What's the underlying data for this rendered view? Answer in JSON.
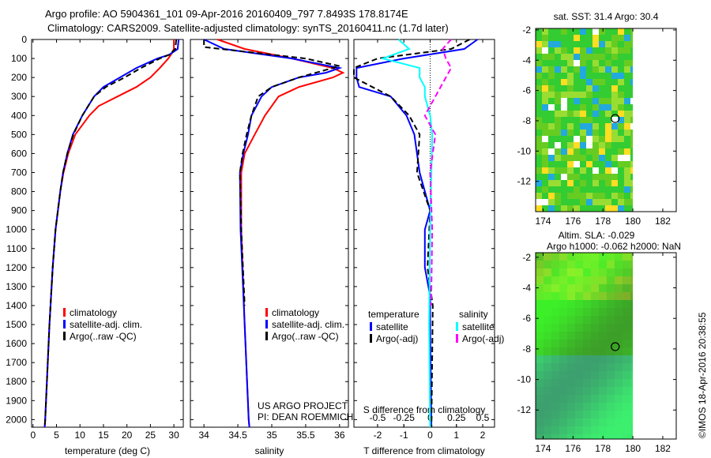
{
  "title": {
    "line1": "Argo profile: AO 5904361_101 09-Apr-2016 20160409_797 7.8493S 178.8174E",
    "line2": "Climatology: CARS2009. Satellite-adjusted climatology: synTS_20160411.nc (1.7d later)"
  },
  "credit": "US ARGO PROJECT",
  "pi": "PI: DEAN ROEMMICH",
  "stamp": "©IMOS 18-Apr-2016 20:38:55",
  "colors": {
    "clim": "#ff0000",
    "sat": "#0000ff",
    "argo": "#000000",
    "ssat": "#00ffff",
    "sargo": "#ff00ff"
  },
  "chart_data": [
    {
      "type": "line",
      "xlabel": "temperature (deg C)",
      "ylabel": "depth",
      "xlim": [
        -0.3,
        32
      ],
      "ylim": [
        2040,
        0
      ],
      "xticks": [
        0,
        5,
        10,
        15,
        20,
        25,
        30
      ],
      "yticks": [
        0,
        100,
        200,
        300,
        400,
        500,
        600,
        700,
        800,
        900,
        1000,
        1100,
        1200,
        1300,
        1400,
        1500,
        1600,
        1700,
        1800,
        1900,
        2000
      ],
      "legend": [
        "climatology",
        "satellite-adj. clim.",
        "Argo(..raw -QC)"
      ],
      "series": [
        {
          "name": "climatology",
          "color": "clim",
          "depth": [
            0,
            50,
            75,
            100,
            150,
            200,
            250,
            300,
            350,
            400,
            500,
            600,
            700,
            800,
            1000,
            1200,
            1500,
            2000,
            2040
          ],
          "values": [
            30,
            30,
            29.5,
            28.8,
            27,
            25,
            22,
            18,
            14,
            12,
            9,
            7.5,
            6.5,
            5.8,
            4.8,
            4.2,
            3.5,
            2.6,
            2.5
          ]
        },
        {
          "name": "satellite-adj. clim.",
          "color": "sat",
          "depth": [
            0,
            50,
            80,
            100,
            150,
            200,
            250,
            300,
            400,
            500,
            600,
            700,
            800,
            1000,
            1200,
            1500,
            2000,
            2040
          ],
          "values": [
            31,
            30.8,
            29,
            26.5,
            22,
            18.5,
            15,
            13,
            10.5,
            8.5,
            7.3,
            6.4,
            5.8,
            4.8,
            4.2,
            3.5,
            2.6,
            2.5
          ]
        },
        {
          "name": "Argo(..raw -QC)",
          "color": "argo",
          "dash": true,
          "depth": [
            0,
            50,
            80,
            100,
            150,
            200,
            250,
            300,
            400,
            500,
            600,
            700,
            800,
            1000,
            1200,
            1500,
            2000,
            2040
          ],
          "values": [
            30.5,
            30.3,
            29,
            27,
            23,
            19.5,
            15.5,
            13,
            10.5,
            8.6,
            7.3,
            6.4,
            5.8,
            4.8,
            4.2,
            3.5,
            2.6,
            2.5
          ]
        }
      ]
    },
    {
      "type": "line",
      "xlabel": "salinity",
      "ylabel": "depth",
      "xlim": [
        33.8,
        36.13
      ],
      "ylim": [
        2040,
        0
      ],
      "xticks": [
        34,
        34.5,
        35,
        35.5,
        36
      ],
      "legend": [
        "climatology",
        "satellite-adj. clim.",
        "Argo(..raw -QC)"
      ],
      "series": [
        {
          "name": "climatology",
          "color": "clim",
          "depth": [
            0,
            50,
            100,
            150,
            175,
            200,
            250,
            300,
            400,
            500,
            600,
            700,
            1000,
            1500,
            2000,
            2040
          ],
          "values": [
            34.2,
            34.6,
            35.3,
            35.9,
            36.05,
            35.9,
            35.4,
            35.1,
            34.9,
            34.75,
            34.6,
            34.55,
            34.55,
            34.6,
            34.66,
            34.67
          ]
        },
        {
          "name": "satellite-adj. clim.",
          "color": "sat",
          "depth": [
            0,
            50,
            100,
            150,
            175,
            200,
            250,
            300,
            400,
            500,
            600,
            700,
            1000,
            1500,
            2000,
            2040
          ],
          "values": [
            34.0,
            34.3,
            35.3,
            36.0,
            35.8,
            35.4,
            35.0,
            34.85,
            34.7,
            34.65,
            34.58,
            34.53,
            34.54,
            34.6,
            34.66,
            34.67
          ]
        },
        {
          "name": "Argo(..raw -QC)",
          "color": "argo",
          "dash": true,
          "depth": [
            0,
            40,
            60,
            100,
            140,
            200,
            250,
            300,
            400,
            500,
            600,
            700,
            1000,
            1400
          ],
          "values": [
            34.0,
            34.0,
            34.5,
            35.5,
            36.0,
            35.4,
            35.0,
            34.8,
            34.7,
            34.63,
            34.57,
            34.53,
            34.55,
            34.6
          ]
        }
      ]
    },
    {
      "type": "line",
      "xlabel": "T difference from climatology",
      "x2label": "S difference from climatology",
      "xlim": [
        -2.9,
        2.45
      ],
      "ylim": [
        2040,
        0
      ],
      "xticks": [
        -2,
        -1,
        0,
        1,
        2
      ],
      "x2ticks": [
        -0.5,
        -0.25,
        0,
        0.25,
        0.5
      ],
      "legend": {
        "temperature": "temperature",
        "salinity": "salinity",
        "items": [
          "satellite",
          "Argo(-adj)",
          "satellite",
          "Argo(-adj)"
        ]
      },
      "series": [
        {
          "name": "T satellite",
          "color": "sat",
          "depth": [
            0,
            50,
            100,
            150,
            200,
            250,
            300,
            400,
            500,
            700,
            900,
            1000,
            1200,
            1350,
            1500,
            2040
          ],
          "values": [
            1.8,
            1.3,
            -1,
            -2.8,
            -2.8,
            -2.7,
            -1.5,
            -0.9,
            -0.6,
            -0.4,
            0,
            -0.2,
            -0.2,
            0,
            0,
            0.05
          ]
        },
        {
          "name": "T Argo(-adj)",
          "color": "argo",
          "dash": true,
          "depth": [
            0,
            50,
            100,
            150,
            200,
            300,
            400,
            500,
            700,
            900,
            1200,
            1400,
            2040
          ],
          "values": [
            1.5,
            0.8,
            -2,
            -2.9,
            -2.9,
            -1.5,
            -0.8,
            -0.4,
            -0.5,
            0,
            -0.1,
            0.1,
            0.05
          ]
        },
        {
          "name": "S satellite",
          "color": "ssat",
          "scale": 4,
          "depth": [
            0,
            50,
            100,
            150,
            200,
            250,
            300,
            400,
            500,
            1000,
            1500,
            2040
          ],
          "values": [
            -0.3,
            -0.2,
            -0.45,
            -0.1,
            -0.1,
            -0.05,
            -0.05,
            0,
            0.02,
            0,
            -0.01,
            0
          ]
        },
        {
          "name": "S Argo(-adj)",
          "color": "sargo",
          "dash": true,
          "scale": 4,
          "depth": [
            0,
            30,
            50,
            100,
            150,
            200,
            300,
            400,
            500,
            700,
            1000,
            1400
          ],
          "values": [
            0.2,
            0.15,
            0.12,
            0.15,
            0.2,
            0.15,
            0.05,
            -0.05,
            0.05,
            0,
            0.02,
            0.01
          ]
        }
      ]
    },
    {
      "type": "heatmap",
      "title": "sat. SST: 31.4 Argo: 30.4",
      "xlim": [
        173.5,
        182.9
      ],
      "ylim": [
        -14,
        -1.9
      ],
      "xticks": [
        174,
        176,
        178,
        180,
        182
      ],
      "yticks": [
        -2,
        -4,
        -6,
        -8,
        -10,
        -12
      ],
      "marker": [
        178.82,
        -7.85
      ]
    },
    {
      "type": "heatmap",
      "title": "Altim. SLA: -0.029",
      "subtitle": "Argo h1000: -0.062 h2000: NaN",
      "xlim": [
        173.5,
        182.9
      ],
      "ylim": [
        -13.9,
        -1.7
      ],
      "xticks": [
        174,
        176,
        178,
        180,
        182
      ],
      "yticks": [
        -2,
        -4,
        -6,
        -8,
        -10,
        -12
      ],
      "marker": [
        178.82,
        -7.85
      ]
    }
  ]
}
